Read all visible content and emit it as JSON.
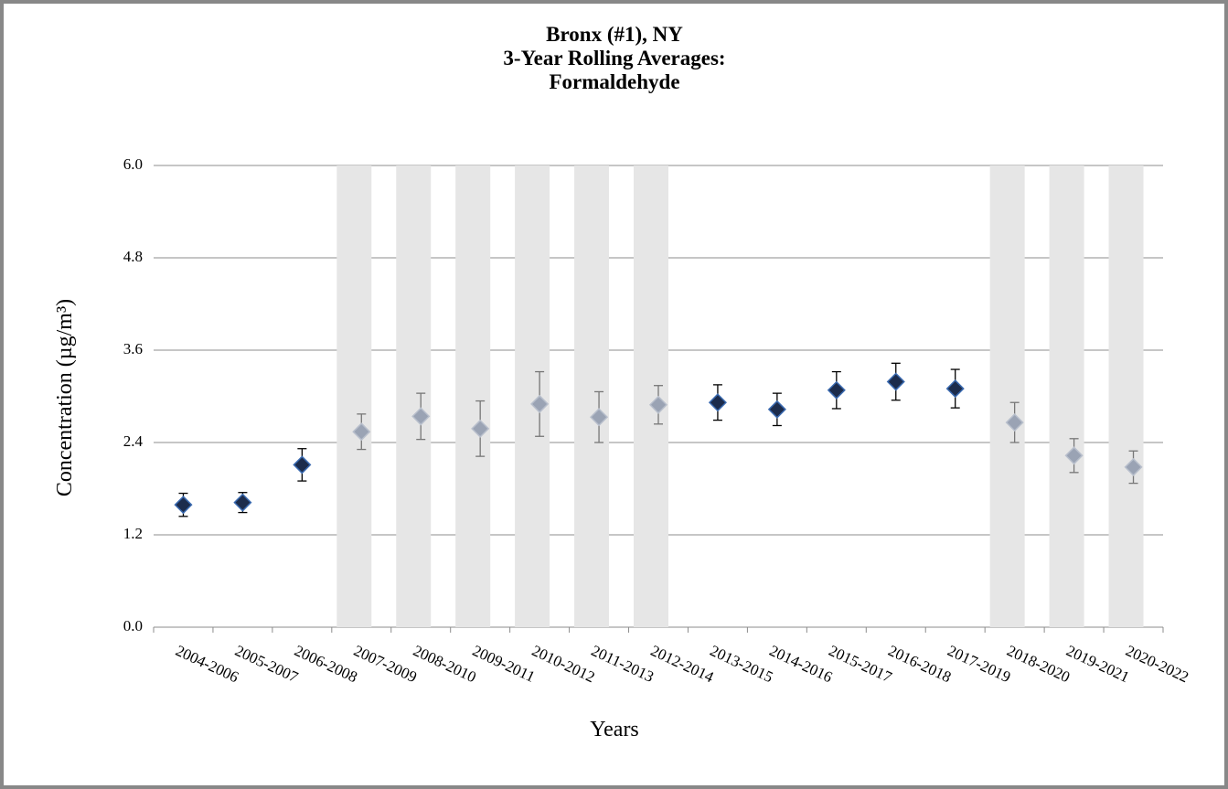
{
  "chart_data": {
    "type": "errorbar",
    "title": [
      "Bronx (#1), NY",
      "3-Year Rolling Averages:",
      "Formaldehyde"
    ],
    "x_label": "Years",
    "y_label": "Concentration (µg/m³)",
    "categories": [
      "2004-2006",
      "2005-2007",
      "2006-2008",
      "2007-2009",
      "2008-2010",
      "2009-2011",
      "2010-2012",
      "2011-2013",
      "2012-2014",
      "2013-2015",
      "2014-2016",
      "2015-2017",
      "2016-2018",
      "2017-2019",
      "2018-2020",
      "2019-2021",
      "2020-2022"
    ],
    "values": [
      1.59,
      1.62,
      2.11,
      2.54,
      2.74,
      2.58,
      2.9,
      2.73,
      2.89,
      2.92,
      2.83,
      3.08,
      3.19,
      3.1,
      2.66,
      2.23,
      2.08
    ],
    "errors": [
      0.15,
      0.13,
      0.21,
      0.23,
      0.3,
      0.36,
      0.42,
      0.33,
      0.25,
      0.23,
      0.21,
      0.24,
      0.24,
      0.25,
      0.26,
      0.22,
      0.21
    ],
    "shaded": [
      false,
      false,
      false,
      true,
      true,
      true,
      true,
      true,
      true,
      false,
      false,
      false,
      false,
      false,
      true,
      true,
      true
    ],
    "color": "#1c2c4c",
    "shaded_color": "#9aa3b4",
    "shade_color": "#e6e6e6",
    "ylim": [
      0,
      6
    ],
    "yticks": [
      {
        "value": 0,
        "label": "0.0"
      },
      1.2,
      2.4,
      3.6,
      4.8,
      {
        "value": 6,
        "label": "6.0"
      }
    ],
    "grid": true
  }
}
